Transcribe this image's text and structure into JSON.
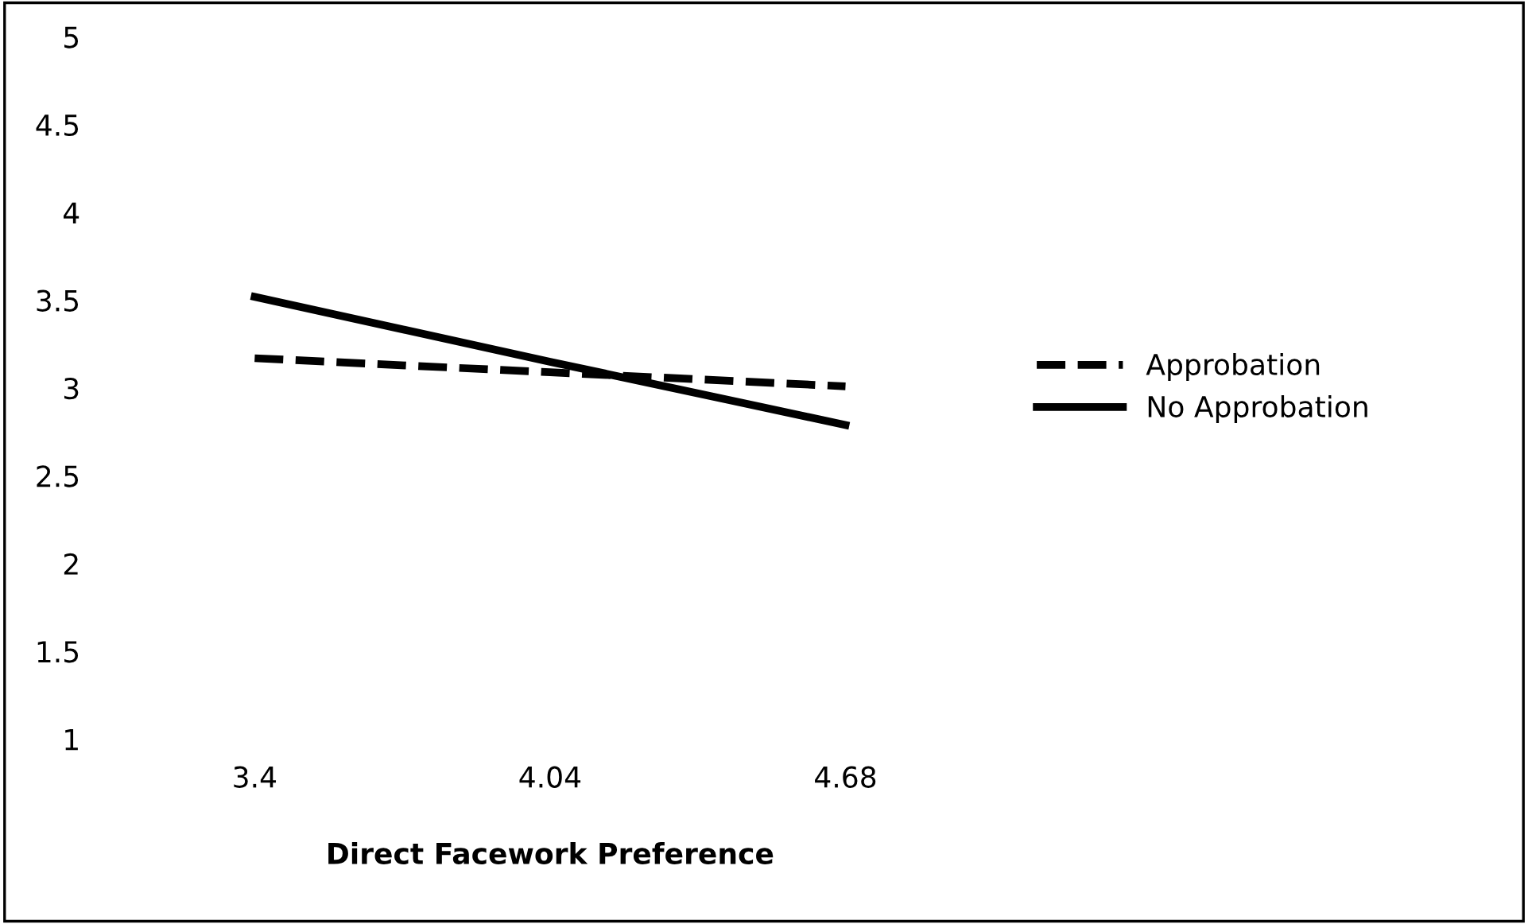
{
  "chart_data": {
    "type": "line",
    "xlabel": "Direct Facework Preference",
    "categories": [
      "3.4",
      "4.04",
      "4.68"
    ],
    "series": [
      {
        "name": "Approbation",
        "color": "#000000",
        "line_style": "dashed",
        "values": [
          3.17,
          3.09,
          3.01
        ]
      },
      {
        "name": "No Approbation",
        "color": "#000000",
        "line_style": "solid",
        "values": [
          3.52,
          3.15,
          2.79
        ]
      }
    ],
    "ylim": [
      1,
      5
    ],
    "yticks": [
      1,
      1.5,
      2,
      2.5,
      3,
      3.5,
      4,
      4.5,
      5
    ],
    "grid": false,
    "legend": "right",
    "marker": "none"
  }
}
